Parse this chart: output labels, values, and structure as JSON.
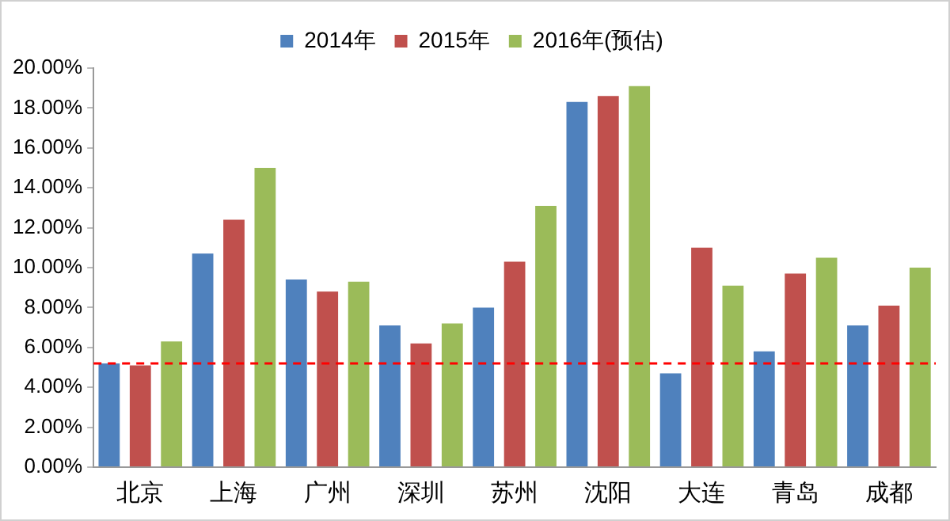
{
  "chart_data": {
    "type": "bar",
    "categories": [
      "北京",
      "上海",
      "广州",
      "深圳",
      "苏州",
      "沈阳",
      "大连",
      "青岛",
      "成都"
    ],
    "series": [
      {
        "name": "2014年",
        "color": "#4f81bd",
        "values": [
          5.2,
          10.7,
          9.4,
          7.1,
          8.0,
          18.3,
          4.7,
          5.8,
          7.1
        ]
      },
      {
        "name": "2015年",
        "color": "#c0504d",
        "values": [
          5.1,
          12.4,
          8.8,
          6.2,
          10.3,
          18.6,
          11.0,
          9.7,
          8.1
        ]
      },
      {
        "name": "2016年(预估)",
        "color": "#9bbb59",
        "values": [
          6.3,
          15.0,
          9.3,
          7.2,
          13.1,
          19.1,
          9.1,
          10.5,
          10.0
        ]
      }
    ],
    "ylim": [
      0,
      20
    ],
    "yticks": [
      {
        "value": 0,
        "label": "0.00%"
      },
      {
        "value": 2,
        "label": "2.00%"
      },
      {
        "value": 4,
        "label": "4.00%"
      },
      {
        "value": 6,
        "label": "6.00%"
      },
      {
        "value": 8,
        "label": "8.00%"
      },
      {
        "value": 10,
        "label": "10.00%"
      },
      {
        "value": 12,
        "label": "12.00%"
      },
      {
        "value": 14,
        "label": "14.00%"
      },
      {
        "value": 16,
        "label": "16.00%"
      },
      {
        "value": 18,
        "label": "18.00%"
      },
      {
        "value": 20,
        "label": "20.00%"
      }
    ],
    "ref_lines": [
      {
        "axis": "y",
        "value": 5.2,
        "color": "#ff0000",
        "line_style": "dashed"
      }
    ],
    "grid": false,
    "legend": "top"
  }
}
